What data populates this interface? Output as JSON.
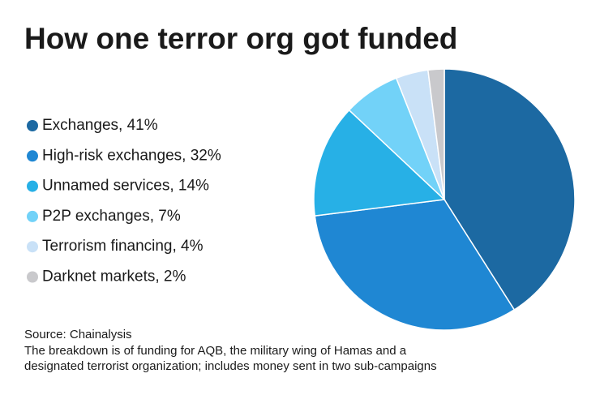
{
  "chart_data": {
    "type": "pie",
    "title": "How one terror org got funded",
    "categories": [
      "Exchanges, 41%",
      "High-risk exchanges, 32%",
      "Unnamed services, 14%",
      "P2P exchanges, 7%",
      "Terrorism financing, 4%",
      "Darknet markets, 2%"
    ],
    "values": [
      41,
      32,
      14,
      7,
      4,
      2
    ],
    "colors": [
      "#1c69a2",
      "#1f87d3",
      "#27b0e6",
      "#72d2f8",
      "#c9e1f7",
      "#c9c9cc"
    ],
    "source": "Source: Chainalysis",
    "note": [
      "The breakdown is of funding for AQB, the military wing of Hamas and a",
      "designated terrorist organization; includes money sent in two sub-campaigns"
    ]
  }
}
